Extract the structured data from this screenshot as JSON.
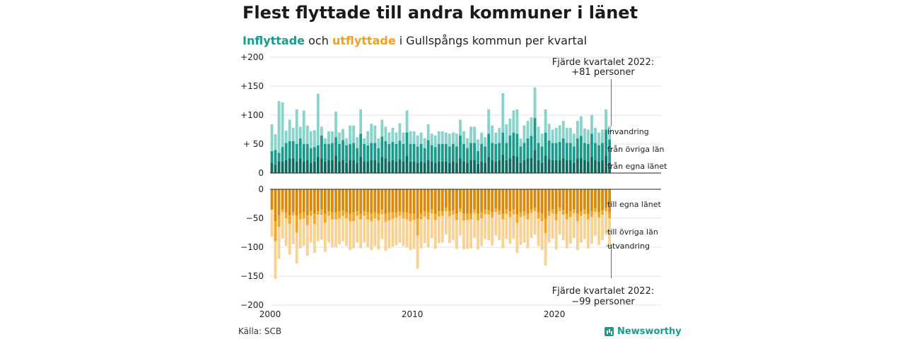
{
  "title": "Flest flyttade till andra kommuner i länet",
  "subtitle": {
    "part1": "Inflyttade",
    "part2": " och ",
    "part3": "utflyttade",
    "part4": " i Gullspångs kommun per kvartal"
  },
  "source": "Källa: SCB",
  "brand": "Newsworthy",
  "colors": {
    "in_egna": "#0e6b60",
    "in_ovriga": "#1a9b8c",
    "in_invandring": "#88d3cb",
    "out_egna": "#d98a0c",
    "out_ovriga": "#f5a623",
    "out_utvandring": "#f8d292"
  },
  "chart_data": {
    "type": "bar",
    "stacked": true,
    "x_start": 2000,
    "x_step": 0.25,
    "xlim": [
      2000,
      2027.5
    ],
    "x_ticks": [
      "2000",
      "2010",
      "2020"
    ],
    "ylim": [
      -200,
      200
    ],
    "y_ticks_top": [
      "+200",
      "+150",
      "+100",
      "+ 50",
      "0"
    ],
    "y_ticks_bottom": [
      "0",
      "−50",
      "−100",
      "−150",
      "−200"
    ],
    "grid": true,
    "labels": {
      "in_invandring": "invandring",
      "in_ovriga": "från övriga län",
      "in_egna": "från egna länet",
      "out_egna": "till egna länet",
      "out_ovriga": "till övriga län",
      "out_utvandring": "utvandring"
    },
    "annotation_top": {
      "line1": "Fjärde kvartalet 2022:",
      "line2": "+81 personer"
    },
    "annotation_bottom": {
      "line1": "Fjärde kvartalet 2022:",
      "line2": "−99 personer"
    },
    "inflyttade_total": [
      84,
      67,
      124,
      122,
      73,
      92,
      78,
      110,
      80,
      108,
      82,
      72,
      74,
      137,
      80,
      60,
      72,
      72,
      106,
      70,
      76,
      60,
      82,
      82,
      62,
      110,
      60,
      72,
      85,
      82,
      60,
      92,
      80,
      70,
      78,
      70,
      86,
      70,
      108,
      72,
      72,
      65,
      70,
      60,
      84,
      68,
      65,
      72,
      72,
      70,
      68,
      70,
      68,
      92,
      72,
      60,
      80,
      80,
      58,
      70,
      62,
      110,
      82,
      70,
      78,
      138,
      84,
      94,
      108,
      110,
      60,
      82,
      90,
      96,
      148,
      80,
      68,
      110,
      85,
      75,
      78,
      82,
      90,
      78,
      78,
      68,
      90,
      98,
      77,
      75,
      100,
      78,
      70,
      75,
      110,
      81
    ],
    "inflyttade_ovriga": [
      20,
      25,
      15,
      25,
      30,
      30,
      30,
      30,
      35,
      30,
      28,
      25,
      25,
      20,
      40,
      30,
      28,
      30,
      32,
      30,
      35,
      30,
      28,
      30,
      25,
      40,
      30,
      28,
      30,
      30,
      25,
      35,
      30,
      30,
      32,
      30,
      32,
      30,
      40,
      30,
      30,
      28,
      30,
      25,
      35,
      28,
      27,
      30,
      30,
      30,
      28,
      30,
      28,
      40,
      30,
      25,
      30,
      30,
      22,
      30,
      28,
      40,
      30,
      30,
      30,
      38,
      30,
      40,
      40,
      40,
      28,
      30,
      35,
      38,
      55,
      30,
      28,
      40,
      32,
      30,
      30,
      32,
      35,
      30,
      30,
      28,
      35,
      38,
      30,
      30,
      40,
      30,
      28,
      30,
      45,
      40
    ],
    "inflyttade_egna": [
      18,
      15,
      20,
      20,
      22,
      25,
      25,
      20,
      25,
      20,
      22,
      18,
      20,
      28,
      25,
      20,
      22,
      22,
      30,
      20,
      22,
      18,
      22,
      22,
      18,
      28,
      20,
      20,
      22,
      22,
      18,
      28,
      25,
      20,
      22,
      20,
      24,
      20,
      30,
      20,
      20,
      18,
      20,
      18,
      22,
      20,
      18,
      20,
      20,
      20,
      18,
      20,
      18,
      25,
      20,
      18,
      22,
      22,
      16,
      20,
      18,
      28,
      22,
      20,
      22,
      32,
      22,
      25,
      30,
      28,
      18,
      22,
      25,
      26,
      40,
      22,
      18,
      30,
      24,
      22,
      22,
      22,
      25,
      22,
      22,
      18,
      25,
      26,
      22,
      20,
      28,
      22,
      20,
      22,
      30,
      18
    ],
    "utflyttade_total": [
      -82,
      -155,
      -120,
      -85,
      -98,
      -113,
      -95,
      -128,
      -102,
      -98,
      -115,
      -92,
      -110,
      -90,
      -87,
      -108,
      -92,
      -100,
      -100,
      -95,
      -90,
      -98,
      -105,
      -102,
      -92,
      -102,
      -92,
      -100,
      -105,
      -98,
      -104,
      -86,
      -106,
      -102,
      -99,
      -97,
      -92,
      -98,
      -100,
      -105,
      -103,
      -137,
      -102,
      -93,
      -100,
      -85,
      -103,
      -93,
      -92,
      -78,
      -93,
      -88,
      -103,
      -80,
      -104,
      -103,
      -102,
      -84,
      -104,
      -98,
      -86,
      -88,
      -97,
      -80,
      -88,
      -102,
      -86,
      -94,
      -86,
      -110,
      -96,
      -92,
      -102,
      -84,
      -78,
      -98,
      -105,
      -132,
      -92,
      -85,
      -104,
      -78,
      -88,
      -102,
      -94,
      -84,
      -105,
      -92,
      -86,
      -102,
      -94,
      -80,
      -96,
      -88,
      -78,
      -99
    ],
    "utflyttade_egna": [
      -40,
      -55,
      -45,
      -35,
      -40,
      -45,
      -40,
      -45,
      -42,
      -40,
      -45,
      -38,
      -42,
      -38,
      -35,
      -42,
      -38,
      -40,
      -40,
      -38,
      -36,
      -40,
      -42,
      -40,
      -38,
      -42,
      -38,
      -40,
      -42,
      -40,
      -42,
      -35,
      -42,
      -40,
      -40,
      -40,
      -38,
      -40,
      -40,
      -42,
      -42,
      -50,
      -42,
      -38,
      -40,
      -35,
      -42,
      -38,
      -38,
      -32,
      -38,
      -36,
      -42,
      -33,
      -42,
      -42,
      -42,
      -35,
      -42,
      -40,
      -35,
      -36,
      -40,
      -33,
      -36,
      -42,
      -35,
      -38,
      -35,
      -44,
      -40,
      -38,
      -42,
      -35,
      -32,
      -40,
      -42,
      -50,
      -38,
      -35,
      -42,
      -32,
      -36,
      -42,
      -38,
      -35,
      -42,
      -38,
      -35,
      -42,
      -38,
      -33,
      -39,
      -36,
      -32,
      -40
    ],
    "utflyttade_ovriga": [
      -35,
      -90,
      -65,
      -40,
      -50,
      -60,
      -45,
      -75,
      -52,
      -50,
      -62,
      -46,
      -60,
      -44,
      -44,
      -58,
      -46,
      -52,
      -52,
      -50,
      -46,
      -50,
      -55,
      -55,
      -46,
      -52,
      -46,
      -52,
      -55,
      -50,
      -54,
      -43,
      -56,
      -54,
      -51,
      -49,
      -46,
      -50,
      -52,
      -55,
      -53,
      -80,
      -52,
      -47,
      -52,
      -42,
      -53,
      -47,
      -46,
      -38,
      -47,
      -44,
      -53,
      -39,
      -54,
      -53,
      -52,
      -41,
      -54,
      -50,
      -43,
      -44,
      -49,
      -39,
      -44,
      -52,
      -43,
      -48,
      -43,
      -58,
      -48,
      -46,
      -52,
      -41,
      -38,
      -50,
      -55,
      -76,
      -46,
      -42,
      -54,
      -38,
      -44,
      -52,
      -48,
      -41,
      -55,
      -46,
      -43,
      -52,
      -48,
      -39,
      -49,
      -44,
      -38,
      -50
    ]
  }
}
